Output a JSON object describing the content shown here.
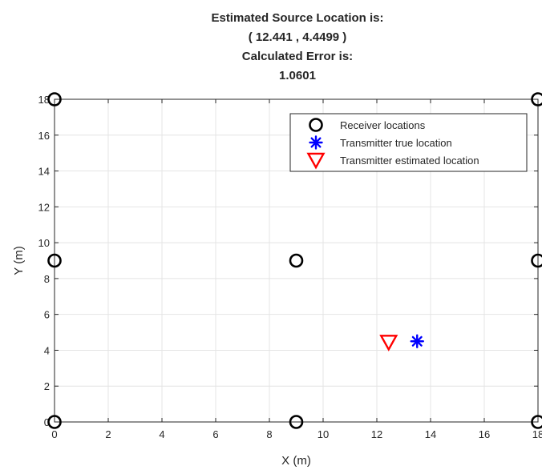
{
  "chart_data": {
    "type": "scatter",
    "title_lines": [
      "Estimated Source Location is:",
      "(  12.441  ,  4.4499  )",
      "Calculated Error is:",
      "1.0601"
    ],
    "xlabel": "X (m)",
    "ylabel": "Y (m)",
    "xlim": [
      0,
      18
    ],
    "ylim": [
      0,
      18
    ],
    "xticks": [
      0,
      2,
      4,
      6,
      8,
      10,
      12,
      14,
      16,
      18
    ],
    "xtick_labels": [
      "0",
      "2",
      "4",
      "6",
      "8",
      "10",
      "12",
      "14",
      "16",
      "18"
    ],
    "yticks": [
      0,
      2,
      4,
      6,
      8,
      10,
      12,
      14,
      16,
      18
    ],
    "ytick_labels": [
      "0",
      "2",
      "4",
      "6",
      "8",
      "10",
      "12",
      "14",
      "16",
      "18"
    ],
    "grid": true,
    "legend_position": "top-right",
    "series": [
      {
        "name": "Receiver locations",
        "marker": "circle",
        "color": "#000000",
        "points": [
          [
            0,
            18
          ],
          [
            18,
            18
          ],
          [
            0,
            9
          ],
          [
            9,
            9
          ],
          [
            18,
            9
          ],
          [
            0,
            0
          ],
          [
            9,
            0
          ],
          [
            18,
            0
          ]
        ]
      },
      {
        "name": "Transmitter true location",
        "marker": "asterisk",
        "color": "#0000ff",
        "points": [
          [
            13.5,
            4.5
          ]
        ]
      },
      {
        "name": "Transmitter estimated location",
        "marker": "triangle-down",
        "color": "#ff0000",
        "points": [
          [
            12.441,
            4.4499
          ]
        ]
      }
    ]
  }
}
